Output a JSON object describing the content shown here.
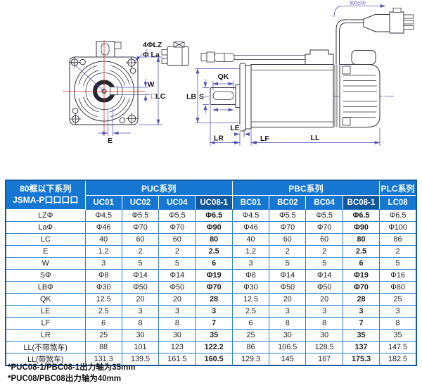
{
  "colors": {
    "header_blue": "#1677d2",
    "header_dark_blue": "#11589e",
    "grid_blue": "#2e7fd0",
    "outer_border_blue": "#12599f",
    "drawing_line": "#32323f",
    "dimension_line": "#5656b8",
    "centerline_red": "#c0392b",
    "cell_text": "#1c1c1c"
  },
  "drawing": {
    "labels": {
      "holes": "4ΦLZ",
      "hole_circle": "Φ La",
      "w": "W",
      "lc": "□LC",
      "e": "E",
      "qk": "QK",
      "s": "S",
      "lb": "LB",
      "le": "LE",
      "lr": "LR",
      "lf": "LF",
      "ll": "LL",
      "cable_length": "300±30"
    }
  },
  "table": {
    "corner_header": {
      "line1": "80框以下系列",
      "line2": "JSMA-P口口口口"
    },
    "groups": [
      {
        "label": "PUC系列",
        "span": 4
      },
      {
        "label": "PBC系列",
        "span": 4
      },
      {
        "label": "PLC系列",
        "span": 1
      }
    ],
    "columns": [
      "UC01",
      "UC02",
      "UC04",
      "UC08-1",
      "BC01",
      "BC02",
      "BC04",
      "BC08-1",
      "LC08"
    ],
    "highlight_columns": [
      3,
      7
    ],
    "rows": [
      {
        "label": "LZΦ",
        "values": [
          "Φ4.5",
          "Φ5.5",
          "Φ5.5",
          "Φ6.5",
          "Φ4.5",
          "Φ5.5",
          "Φ5.5",
          "Φ6.5",
          "Φ6.5"
        ]
      },
      {
        "label": "LaΦ",
        "values": [
          "Φ46",
          "Φ70",
          "Φ70",
          "Φ90",
          "Φ46",
          "Φ70",
          "Φ70",
          "Φ90",
          "Φ100"
        ]
      },
      {
        "label": "LC",
        "values": [
          "40",
          "60",
          "60",
          "80",
          "40",
          "60",
          "60",
          "80",
          "86"
        ]
      },
      {
        "label": "E",
        "values": [
          "1.2",
          "2",
          "2",
          "2.5",
          "1.2",
          "2",
          "2",
          "2.5",
          "2"
        ]
      },
      {
        "label": "W",
        "values": [
          "3",
          "5",
          "5",
          "6",
          "3",
          "5",
          "5",
          "6",
          "5"
        ]
      },
      {
        "label": "SΦ",
        "values": [
          "Φ8",
          "Φ14",
          "Φ14",
          "Φ19",
          "Φ8",
          "Φ14",
          "Φ14",
          "Φ19",
          "Φ16"
        ]
      },
      {
        "label": "LBΦ",
        "values": [
          "Φ30",
          "Φ50",
          "Φ50",
          "Φ70",
          "Φ30",
          "Φ50",
          "Φ50",
          "Φ70",
          "Φ80"
        ]
      },
      {
        "label": "QK",
        "values": [
          "12.5",
          "20",
          "20",
          "28",
          "12.5",
          "20",
          "20",
          "28",
          "25"
        ]
      },
      {
        "label": "LE",
        "values": [
          "2.5",
          "3",
          "3",
          "3",
          "2.5",
          "3",
          "3",
          "3",
          "3"
        ]
      },
      {
        "label": "LF",
        "values": [
          "6",
          "8",
          "8",
          "7",
          "6",
          "8",
          "8",
          "7",
          "8"
        ]
      },
      {
        "label": "LR",
        "values": [
          "25",
          "30",
          "30",
          "35",
          "25",
          "30",
          "30",
          "35",
          "35"
        ]
      },
      {
        "label": "LL(不带煞车)",
        "values": [
          "88",
          "101",
          "123",
          "122.2",
          "86",
          "106.5",
          "128.5",
          "137",
          "147.5"
        ]
      },
      {
        "label": "LL(带煞车)",
        "values": [
          "131.3",
          "139.5",
          "161.5",
          "160.5",
          "129.3",
          "145",
          "167",
          "175.3",
          "182.5"
        ]
      }
    ]
  },
  "footnotes": [
    "*PUC08-1/PBC08-1出力轴为35mm",
    "*PUC08/PBC08出力轴为40mm"
  ]
}
